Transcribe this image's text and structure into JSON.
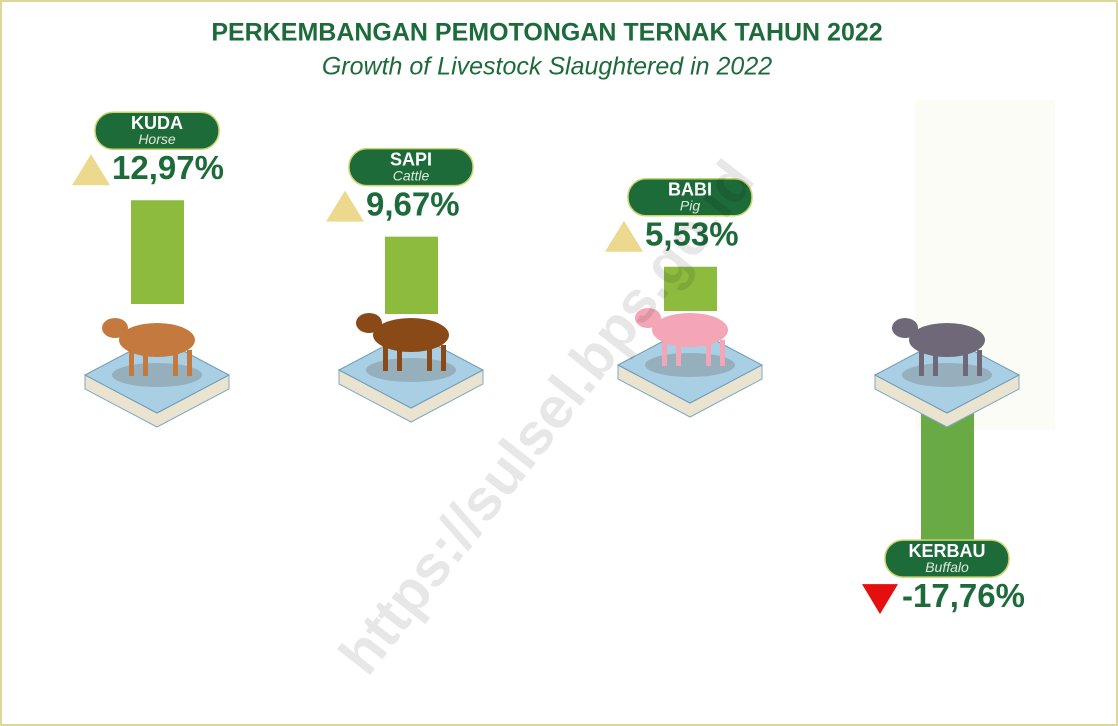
{
  "chart_data": {
    "type": "bar",
    "title": "PERKEMBANGAN PEMOTONGAN TERNAK TAHUN 2022",
    "subtitle": "Growth of Livestock Slaughtered in 2022",
    "categories": [
      "KUDA",
      "SAPI",
      "BABI",
      "KERBAU"
    ],
    "category_subtitles": [
      "Horse",
      "Cattle",
      "Pig",
      "Buffalo"
    ],
    "values": [
      12.97,
      9.67,
      5.53,
      -17.76
    ],
    "value_labels": [
      "12,97%",
      "9,67%",
      "5,53%",
      "-17,76%"
    ],
    "colors": [
      "#8cbb3e",
      "#8cbb3e",
      "#8cbb3e",
      "#6aaa44"
    ],
    "watermark": "https://sulsel.bps.go.id"
  }
}
